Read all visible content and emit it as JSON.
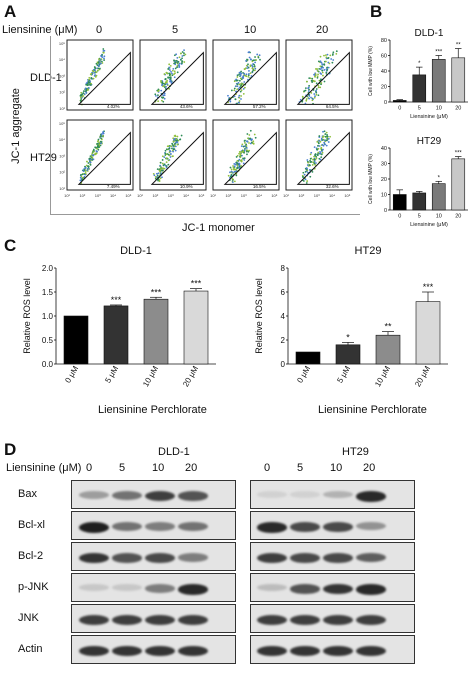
{
  "panel_A": {
    "label": "A",
    "treatment_label": "Liensinine (μM)",
    "doses": [
      "0",
      "5",
      "10",
      "20"
    ],
    "rows": [
      {
        "name": "DLD-1",
        "percents": [
          "4.02%",
          "43.6%",
          "57.2%",
          "64.5%"
        ]
      },
      {
        "name": "HT29",
        "percents": [
          "7.49%",
          "10.9%",
          "16.5%",
          "32.6%"
        ]
      }
    ],
    "y_axis_label": "JC-1 aggregate",
    "x_axis_label": "JC-1 monomer",
    "axis_ticks": [
      "10¹",
      "10²",
      "10³",
      "10⁴",
      "10⁵"
    ]
  },
  "panel_B": {
    "label": "B"
  },
  "panel_C": {
    "label": "C",
    "x_axis_title": "Liensinine Perchlorate"
  },
  "panel_D": {
    "label": "D",
    "treatment_label": "Liensinine (μM)",
    "cell_lines": [
      "DLD-1",
      "HT29"
    ],
    "doses": [
      "0",
      "5",
      "10",
      "20"
    ],
    "proteins": [
      "Bax",
      "Bcl-xl",
      "Bcl-2",
      "p-JNK",
      "JNK",
      "Actin"
    ],
    "band_intensity": {
      "DLD-1": [
        [
          0.35,
          0.55,
          0.8,
          0.7
        ],
        [
          0.95,
          0.55,
          0.5,
          0.55
        ],
        [
          0.85,
          0.7,
          0.75,
          0.5
        ],
        [
          0.15,
          0.15,
          0.5,
          0.9
        ],
        [
          0.8,
          0.8,
          0.8,
          0.8
        ],
        [
          0.85,
          0.85,
          0.85,
          0.85
        ]
      ],
      "HT29": [
        [
          0.1,
          0.1,
          0.25,
          0.9
        ],
        [
          0.9,
          0.75,
          0.75,
          0.4
        ],
        [
          0.8,
          0.75,
          0.75,
          0.65
        ],
        [
          0.2,
          0.7,
          0.85,
          0.9
        ],
        [
          0.8,
          0.8,
          0.8,
          0.8
        ],
        [
          0.85,
          0.85,
          0.85,
          0.85
        ]
      ]
    }
  },
  "chart_data": [
    {
      "type": "bar",
      "title": "DLD-1",
      "categories": [
        "0",
        "5",
        "10",
        "20"
      ],
      "values": [
        2,
        35,
        55,
        57
      ],
      "errors": [
        1,
        10,
        5,
        12
      ],
      "significance": [
        "",
        "*",
        "***",
        "**"
      ],
      "ylabel": "Cell with low MMP (%)",
      "xlabel": "Liensinine (μM)",
      "ylim": [
        0,
        80
      ],
      "yticks": [
        "0",
        "20",
        "40",
        "60",
        "80"
      ],
      "colors": [
        "#000000",
        "#333333",
        "#7a7a7a",
        "#c8c8c8"
      ]
    },
    {
      "type": "bar",
      "title": "HT29",
      "categories": [
        "0",
        "5",
        "10",
        "20"
      ],
      "values": [
        10,
        11,
        17,
        33
      ],
      "errors": [
        3,
        1,
        1.5,
        1.5
      ],
      "significance": [
        "",
        "",
        "*",
        "***"
      ],
      "ylabel": "Cell with low MMP (%)",
      "xlabel": "Liensinine (μM)",
      "ylim": [
        0,
        40
      ],
      "yticks": [
        "0",
        "10",
        "20",
        "30",
        "40"
      ],
      "colors": [
        "#000000",
        "#333333",
        "#7a7a7a",
        "#c8c8c8"
      ]
    },
    {
      "type": "bar",
      "title": "DLD-1",
      "categories": [
        "0 μM",
        "5 μM",
        "10 μM",
        "20 μM"
      ],
      "values": [
        1.0,
        1.21,
        1.35,
        1.52
      ],
      "errors": [
        0,
        0.02,
        0.04,
        0.05
      ],
      "significance": [
        "",
        "***",
        "***",
        "***"
      ],
      "ylabel": "Relative ROS level",
      "xlabel": "Liensinine Perchlorate",
      "ylim": [
        0,
        2.0
      ],
      "yticks": [
        "0.0",
        "0.5",
        "1.0",
        "1.5",
        "2.0"
      ],
      "colors": [
        "#000000",
        "#333333",
        "#8c8c8c",
        "#d9d9d9"
      ]
    },
    {
      "type": "bar",
      "title": "HT29",
      "categories": [
        "0 μM",
        "5 μM",
        "10 μM",
        "20 μM"
      ],
      "values": [
        1.0,
        1.6,
        2.4,
        5.2
      ],
      "errors": [
        0,
        0.2,
        0.3,
        0.8
      ],
      "significance": [
        "",
        "*",
        "**",
        "***"
      ],
      "ylabel": "Relative ROS level",
      "xlabel": "Liensinine Perchlorate",
      "ylim": [
        0,
        8
      ],
      "yticks": [
        "0",
        "2",
        "4",
        "6",
        "8"
      ],
      "colors": [
        "#000000",
        "#333333",
        "#8c8c8c",
        "#d9d9d9"
      ]
    }
  ]
}
